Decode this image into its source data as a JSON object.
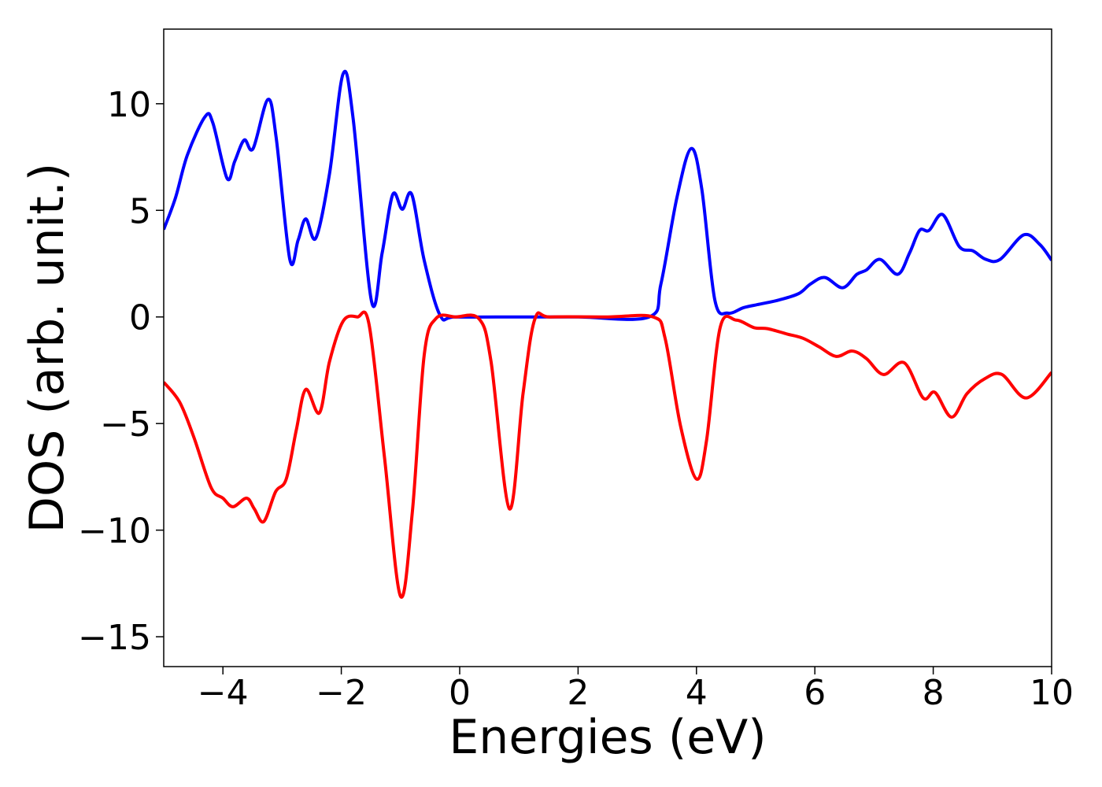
{
  "chart_data": {
    "type": "line",
    "xlabel": "Energies (eV)",
    "ylabel": "DOS (arb. unit.)",
    "xlim": [
      -5,
      10
    ],
    "xticks": [
      {
        "value": -4,
        "label": "−4"
      },
      {
        "value": -2,
        "label": "−2"
      },
      0,
      2,
      4,
      6,
      8,
      10
    ],
    "ylim": [
      -16.4,
      13.5
    ],
    "yticks": [
      {
        "value": -15,
        "label": "−15"
      },
      {
        "value": -10,
        "label": "−10"
      },
      {
        "value": -5,
        "label": "−5"
      },
      0,
      5,
      10
    ],
    "grid": false,
    "series": [
      {
        "color": "#0000ff",
        "x": [
          -5.0,
          -4.8,
          -4.6,
          -4.3,
          -4.17,
          -3.93,
          -3.8,
          -3.64,
          -3.49,
          -3.24,
          -3.1,
          -2.87,
          -2.73,
          -2.6,
          -2.43,
          -2.2,
          -1.97,
          -1.8,
          -1.49,
          -1.31,
          -1.13,
          -0.97,
          -0.81,
          -0.6,
          -0.33,
          -0.07,
          1.0,
          2.0,
          3.2,
          3.4,
          3.67,
          3.91,
          4.09,
          4.31,
          4.53,
          4.8,
          5.07,
          5.4,
          5.73,
          5.93,
          6.17,
          6.47,
          6.71,
          6.87,
          7.1,
          7.4,
          7.6,
          7.77,
          7.93,
          8.16,
          8.44,
          8.67,
          8.89,
          9.13,
          9.53,
          9.8,
          10.0
        ],
        "values": [
          4.1,
          5.6,
          7.6,
          9.4,
          9.1,
          6.5,
          7.3,
          8.3,
          7.9,
          10.2,
          8.4,
          2.7,
          3.6,
          4.6,
          3.7,
          6.7,
          11.4,
          9.3,
          0.74,
          3.0,
          5.75,
          5.05,
          5.75,
          2.66,
          0.07,
          0,
          0,
          0,
          0,
          1.55,
          5.6,
          7.9,
          6.0,
          0.8,
          0.18,
          0.44,
          0.6,
          0.8,
          1.1,
          1.55,
          1.85,
          1.37,
          2.0,
          2.2,
          2.7,
          2.0,
          3.0,
          4.06,
          4.06,
          4.8,
          3.3,
          3.1,
          2.7,
          2.7,
          3.85,
          3.4,
          2.66
        ]
      },
      {
        "color": "#ff0000",
        "x": [
          -5.0,
          -4.73,
          -4.49,
          -4.2,
          -4.0,
          -3.83,
          -3.6,
          -3.47,
          -3.31,
          -3.11,
          -2.93,
          -2.76,
          -2.6,
          -2.37,
          -2.2,
          -1.97,
          -1.73,
          -1.53,
          -1.27,
          -1.0,
          -0.8,
          -0.6,
          -0.4,
          -0.07,
          0.33,
          0.53,
          0.84,
          1.07,
          1.27,
          1.53,
          2.5,
          3.27,
          3.47,
          3.73,
          4.0,
          4.17,
          4.4,
          4.67,
          4.97,
          5.2,
          5.53,
          5.8,
          6.07,
          6.36,
          6.63,
          6.87,
          7.16,
          7.51,
          7.83,
          8.03,
          8.31,
          8.57,
          8.87,
          9.16,
          9.57,
          10.0
        ],
        "values": [
          -3.06,
          -4.0,
          -5.65,
          -8.0,
          -8.5,
          -8.9,
          -8.5,
          -9.0,
          -9.6,
          -8.2,
          -7.6,
          -5.3,
          -3.4,
          -4.5,
          -2.1,
          -0.2,
          0,
          -0.37,
          -6.6,
          -13.1,
          -9.15,
          -1.8,
          -0.07,
          0,
          -0.1,
          -2.1,
          -9.0,
          -3.6,
          -0.1,
          0,
          0,
          0,
          -1.0,
          -5.1,
          -7.6,
          -5.8,
          -0.5,
          -0.15,
          -0.5,
          -0.55,
          -0.8,
          -1.0,
          -1.4,
          -1.85,
          -1.6,
          -1.95,
          -2.7,
          -2.15,
          -3.8,
          -3.54,
          -4.7,
          -3.6,
          -2.9,
          -2.7,
          -3.8,
          -2.6
        ]
      }
    ]
  }
}
